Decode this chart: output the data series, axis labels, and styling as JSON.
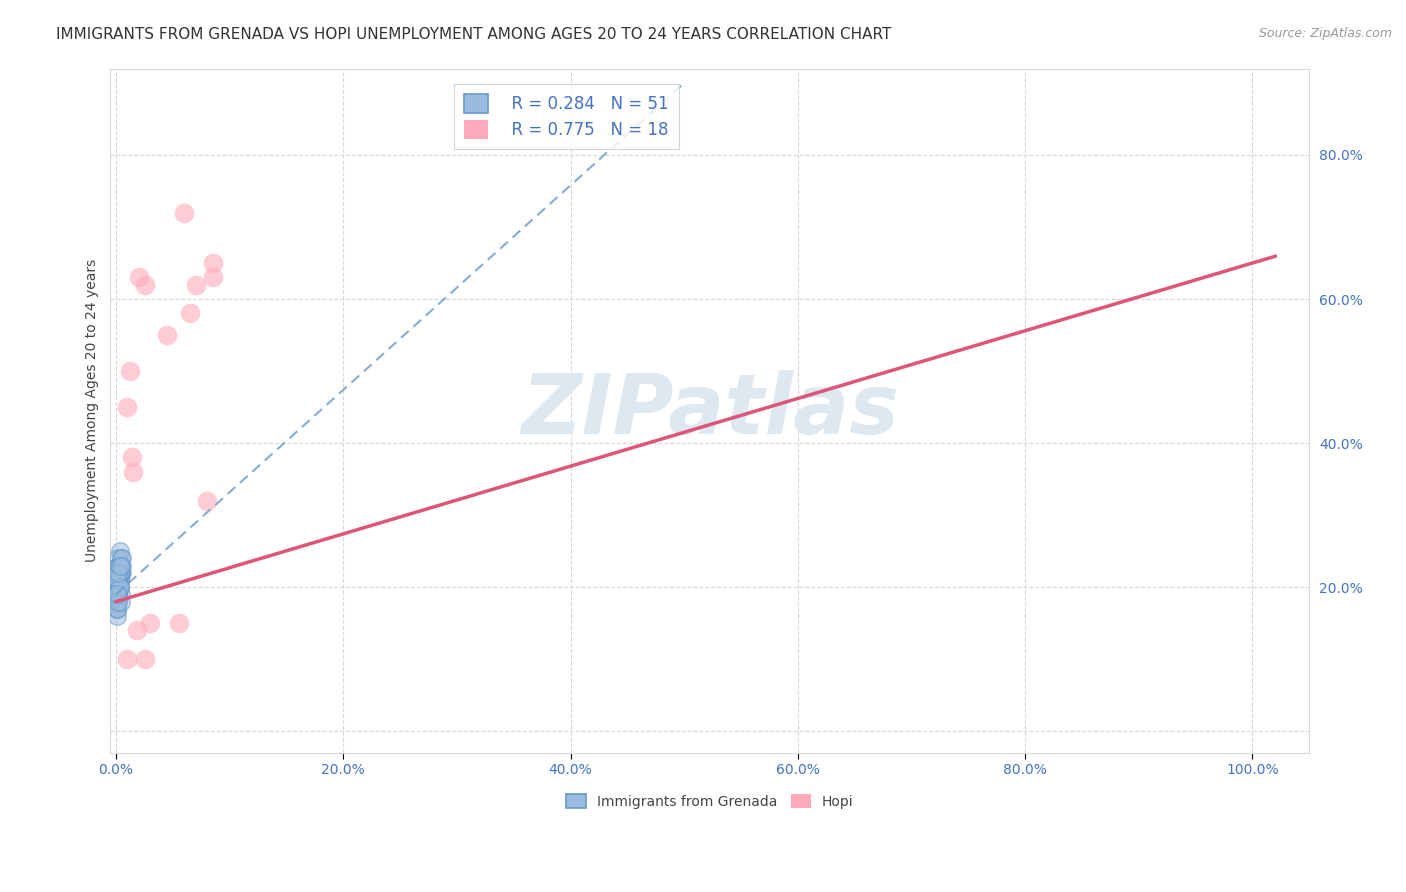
{
  "title": "IMMIGRANTS FROM GRENADA VS HOPI UNEMPLOYMENT AMONG AGES 20 TO 24 YEARS CORRELATION CHART",
  "source": "Source: ZipAtlas.com",
  "ylabel": "Unemployment Among Ages 20 to 24 years",
  "watermark": "ZIPatlas",
  "legend_r1": "R = 0.284",
  "legend_n1": "N = 51",
  "legend_r2": "R = 0.775",
  "legend_n2": "N = 18",
  "blue_scatter_x": [
    0.003,
    0.005,
    0.002,
    0.004,
    0.001,
    0.003,
    0.002,
    0.004,
    0.001,
    0.002,
    0.003,
    0.001,
    0.002,
    0.001,
    0.001,
    0.002,
    0.003,
    0.002,
    0.001,
    0.003,
    0.001,
    0.002,
    0.003,
    0.004,
    0.002,
    0.003,
    0.001,
    0.004,
    0.002,
    0.001,
    0.002,
    0.003,
    0.001,
    0.002,
    0.004,
    0.002,
    0.003,
    0.004,
    0.005,
    0.002,
    0.003,
    0.001,
    0.004,
    0.002,
    0.001,
    0.002,
    0.005,
    0.003,
    0.002,
    0.001,
    0.003
  ],
  "blue_scatter_y": [
    0.25,
    0.22,
    0.2,
    0.23,
    0.18,
    0.21,
    0.24,
    0.19,
    0.17,
    0.23,
    0.2,
    0.22,
    0.21,
    0.18,
    0.16,
    0.19,
    0.21,
    0.23,
    0.18,
    0.22,
    0.17,
    0.2,
    0.21,
    0.22,
    0.19,
    0.23,
    0.2,
    0.24,
    0.21,
    0.17,
    0.2,
    0.22,
    0.19,
    0.21,
    0.23,
    0.2,
    0.22,
    0.18,
    0.24,
    0.21,
    0.2,
    0.22,
    0.23,
    0.19,
    0.21,
    0.18,
    0.23,
    0.2,
    0.22,
    0.19,
    0.23
  ],
  "blue_scatter_outlier_x": [
    0.005
  ],
  "blue_scatter_outlier_y": [
    0.28
  ],
  "pink_scatter_x": [
    0.015,
    0.025,
    0.01,
    0.06,
    0.03,
    0.018,
    0.012,
    0.08,
    0.025,
    0.014,
    0.085,
    0.045,
    0.055,
    0.02,
    0.01,
    0.085,
    0.07,
    0.065
  ],
  "pink_scatter_y": [
    0.36,
    0.1,
    0.45,
    0.72,
    0.15,
    0.14,
    0.5,
    0.32,
    0.62,
    0.38,
    0.63,
    0.55,
    0.15,
    0.63,
    0.1,
    0.65,
    0.62,
    0.58
  ],
  "xlim_min": -0.005,
  "xlim_max": 1.05,
  "ylim_min": -0.03,
  "ylim_max": 0.92,
  "xtick_positions": [
    0.0,
    0.2,
    0.4,
    0.6,
    0.8,
    1.0
  ],
  "xtick_labels": [
    "0.0%",
    "20.0%",
    "40.0%",
    "60.0%",
    "80.0%",
    "100.0%"
  ],
  "ytick_positions": [
    0.0,
    0.2,
    0.4,
    0.6,
    0.8
  ],
  "ytick_labels": [
    "",
    "20.0%",
    "40.0%",
    "60.0%",
    "80.0%"
  ],
  "bg_color": "#ffffff",
  "grid_color": "#d8d8d8",
  "blue_scatter_color": "#99bbdd",
  "blue_scatter_edge": "#6699cc",
  "pink_scatter_color": "#ffaabb",
  "pink_scatter_edge": "#ffaabb",
  "blue_line_color": "#6699cc",
  "pink_line_color": "#dd5577",
  "tick_color": "#4472c4",
  "title_fontsize": 11,
  "axis_label_fontsize": 10,
  "tick_fontsize": 10,
  "watermark_color": "#dde8f0",
  "watermark_fontsize": 60,
  "legend_fontsize": 12
}
